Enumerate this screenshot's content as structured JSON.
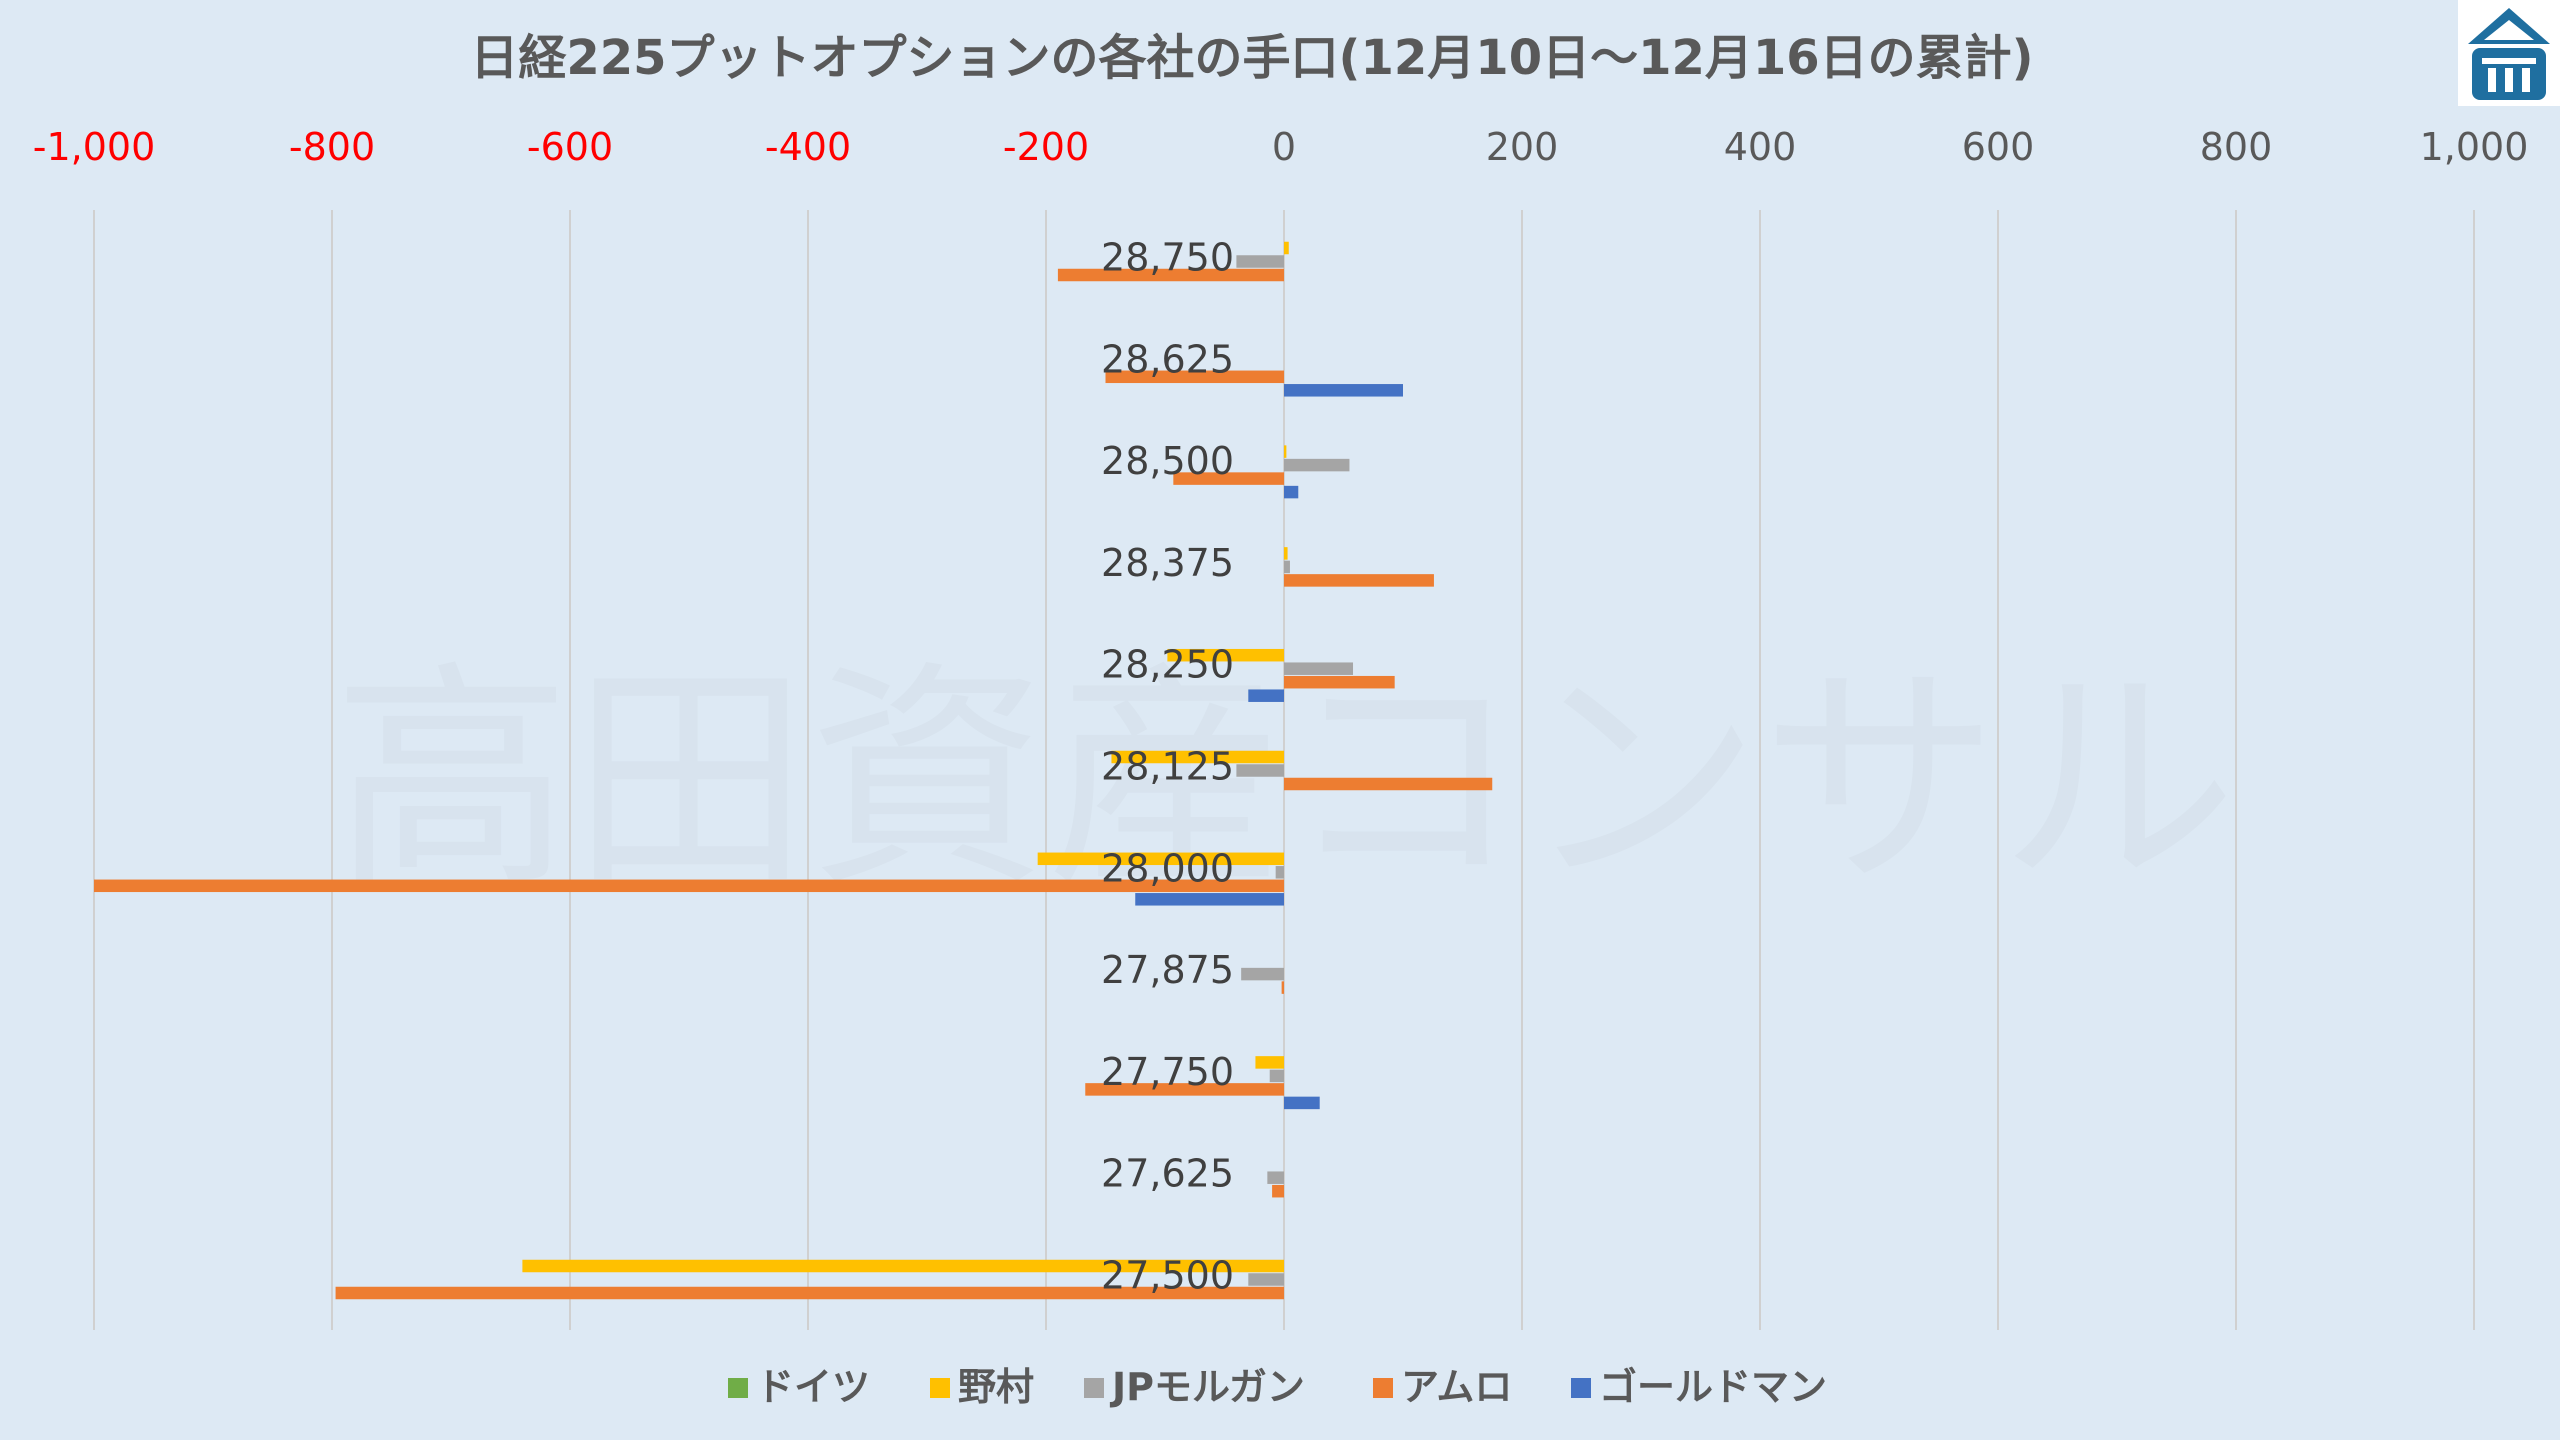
{
  "chart_data": {
    "type": "bar",
    "orientation": "horizontal",
    "title": "日経225プットオプションの各社の手口(12月10日～12月16日の累計)",
    "watermark": "高田資産コンサル",
    "xlim": [
      -1000,
      1000
    ],
    "x_ticks": [
      "-1,000",
      "-800",
      "-600",
      "-400",
      "-200",
      "0",
      "200",
      "400",
      "600",
      "800",
      "1,000"
    ],
    "x_tick_values": [
      -1000,
      -800,
      -600,
      -400,
      -200,
      0,
      200,
      400,
      600,
      800,
      1000
    ],
    "categories": [
      "28,750",
      "28,625",
      "28,500",
      "28,375",
      "28,250",
      "28,125",
      "28,000",
      "27,875",
      "27,750",
      "27,625",
      "27,500"
    ],
    "series": [
      {
        "name": "ドイツ",
        "color": "#70ad47",
        "values": [
          0,
          0,
          0,
          0,
          0,
          0,
          0,
          0,
          0,
          0,
          0
        ]
      },
      {
        "name": "野村",
        "color": "#ffc000",
        "values": [
          4,
          0,
          2,
          3,
          -98,
          -145,
          -207,
          0,
          -24,
          0,
          -640
        ]
      },
      {
        "name": "JPモルガン",
        "color": "#a5a5a5",
        "values": [
          -40,
          0,
          55,
          5,
          58,
          -40,
          -7,
          -36,
          -12,
          -14,
          -30
        ]
      },
      {
        "name": "アムロ",
        "color": "#ed7d31",
        "values": [
          -190,
          -150,
          -93,
          126,
          93,
          175,
          -1000,
          -2,
          -167,
          -10,
          -797
        ]
      },
      {
        "name": "ゴールドマン",
        "color": "#4472c4",
        "values": [
          0,
          100,
          12,
          0,
          -30,
          0,
          -125,
          0,
          30,
          0,
          0
        ]
      }
    ],
    "grid": true,
    "legend_position": "bottom",
    "negative_tick_color": "#ff0000",
    "positive_tick_color": "#595959"
  },
  "logo": {
    "name": "company-logo-icon"
  }
}
